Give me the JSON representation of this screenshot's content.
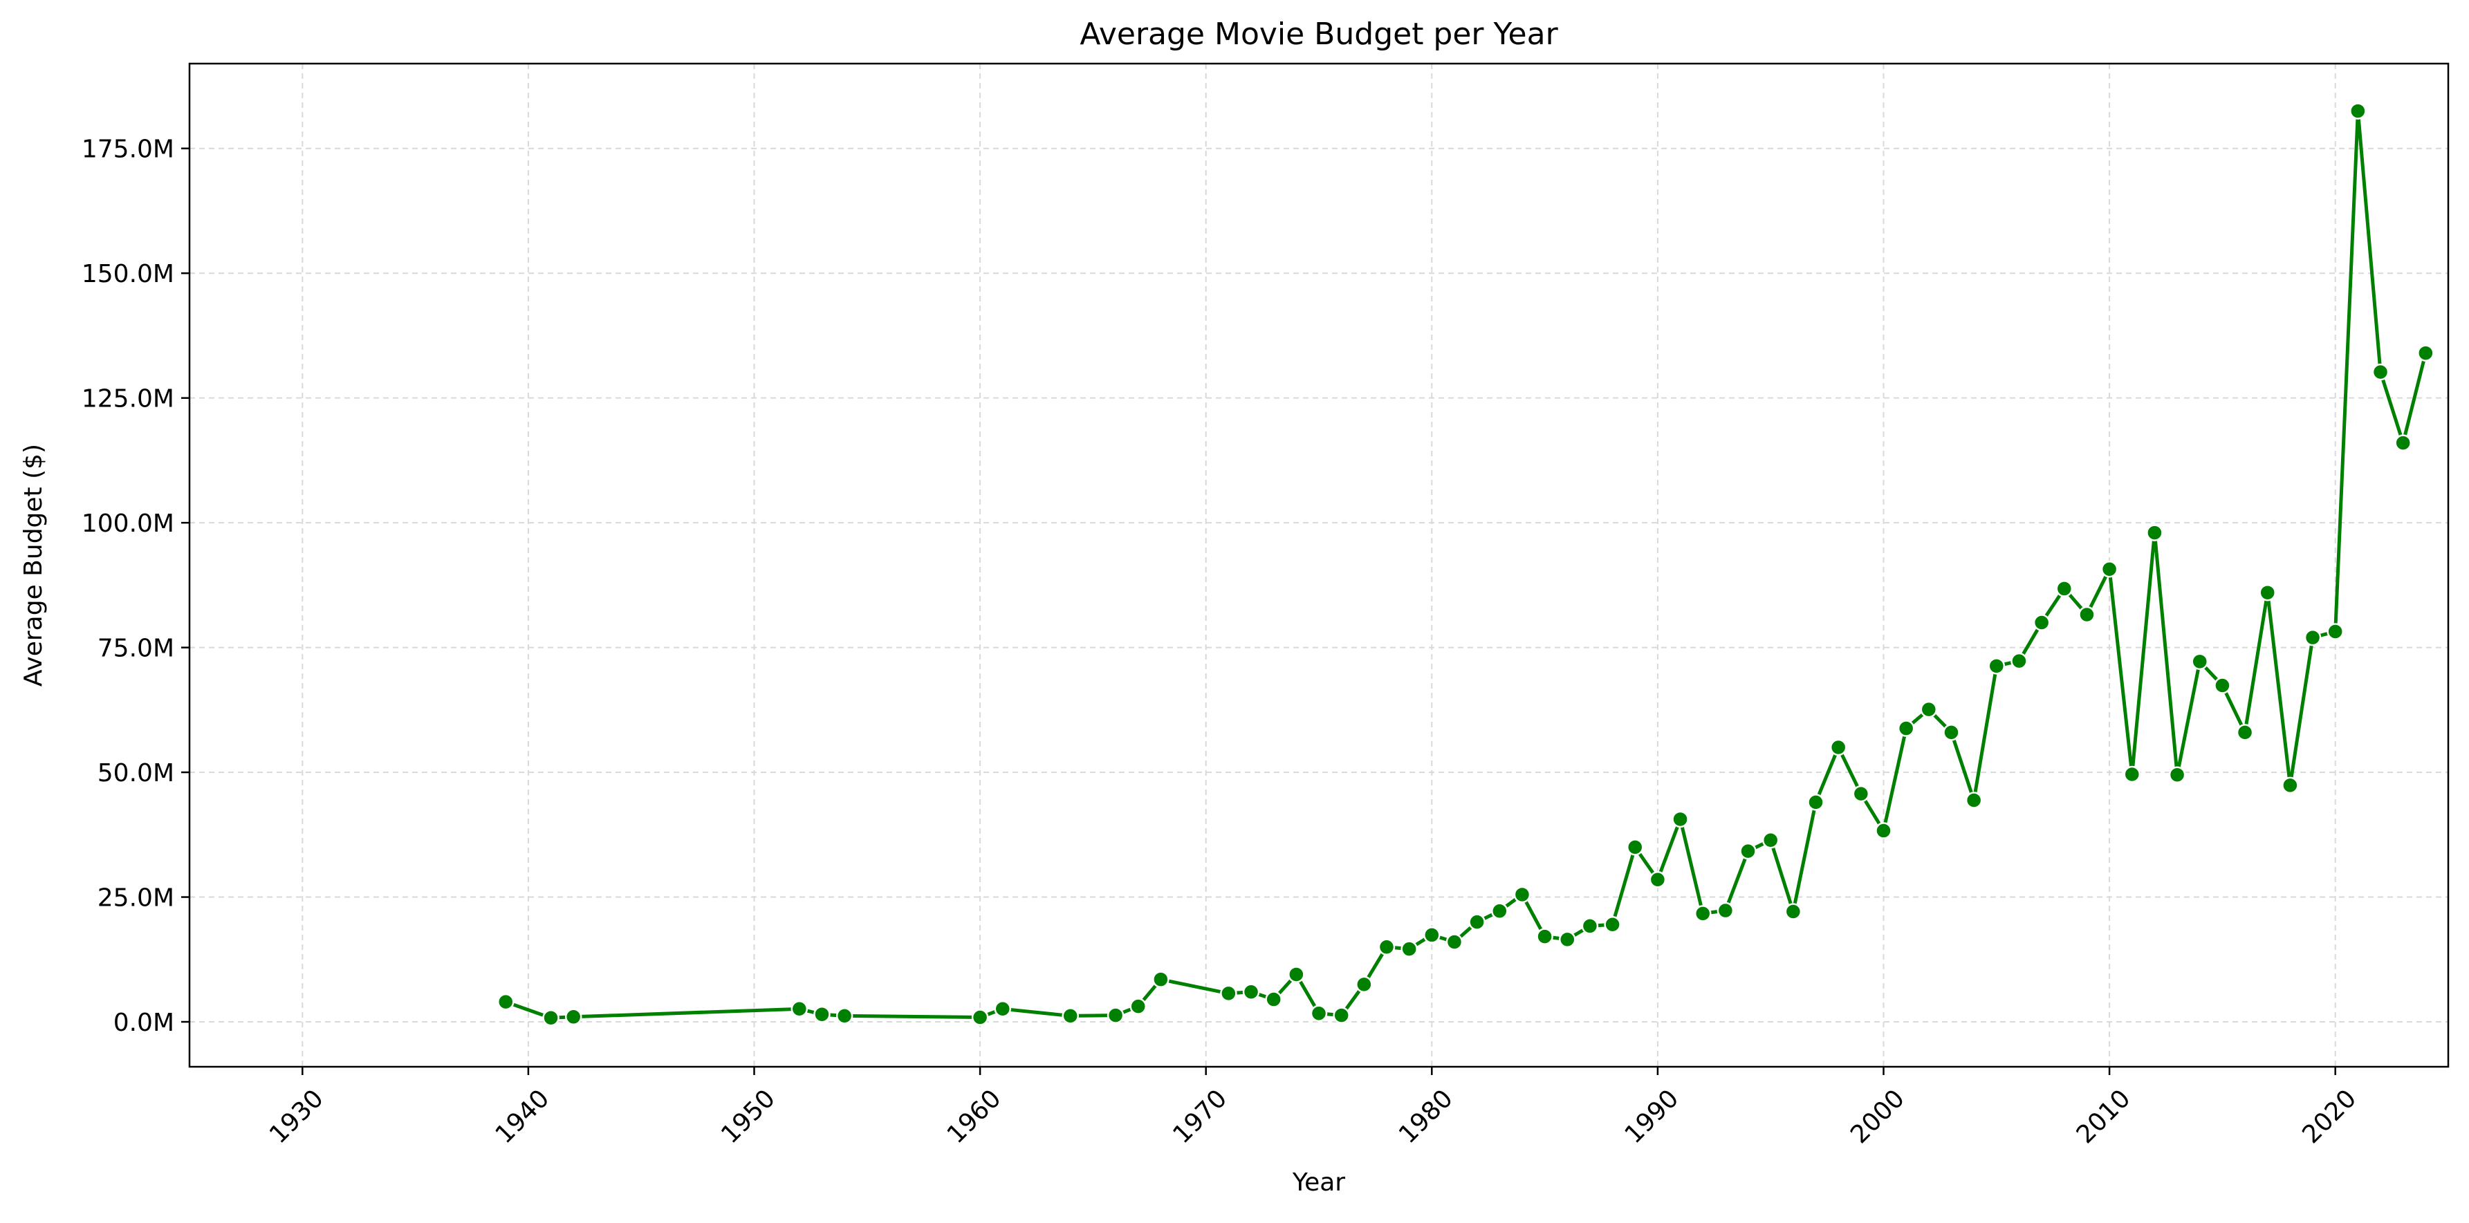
{
  "chart_data": {
    "type": "line",
    "title": "Average Movie Budget per Year",
    "xlabel": "Year",
    "ylabel": "Average Budget ($)",
    "xlim": [
      1925,
      2025
    ],
    "ylim": [
      -9000000,
      192000000
    ],
    "x_ticks": [
      1930,
      1940,
      1950,
      1960,
      1970,
      1980,
      1990,
      2000,
      2010,
      2020
    ],
    "x_tick_labels": [
      "1930",
      "1940",
      "1950",
      "1960",
      "1970",
      "1980",
      "1990",
      "2000",
      "2010",
      "2020"
    ],
    "y_ticks": [
      0,
      25000000,
      50000000,
      75000000,
      100000000,
      125000000,
      150000000,
      175000000
    ],
    "y_tick_labels": [
      "0.0M",
      "25.0M",
      "50.0M",
      "75.0M",
      "100.0M",
      "125.0M",
      "150.0M",
      "175.0M"
    ],
    "grid": true,
    "color": "#008000",
    "marker": "circle",
    "series": [
      {
        "x": [
          1939,
          1941,
          1942,
          1952,
          1953,
          1954,
          1960,
          1961,
          1964,
          1966,
          1967,
          1968,
          1971,
          1972,
          1973,
          1974,
          1975,
          1976,
          1977,
          1978,
          1979,
          1980,
          1981,
          1982,
          1983,
          1984,
          1985,
          1986,
          1987,
          1988,
          1989,
          1990,
          1991,
          1992,
          1993,
          1994,
          1995,
          1996,
          1997,
          1998,
          1999,
          2000,
          2001,
          2002,
          2003,
          2004,
          2005,
          2006,
          2007,
          2008,
          2009,
          2010,
          2011,
          2012,
          2013,
          2014,
          2015,
          2016,
          2017,
          2018,
          2019,
          2020,
          2021,
          2022,
          2023,
          2024
        ],
        "y": [
          4000000,
          800000,
          1000000,
          2600000,
          1500000,
          1200000,
          900000,
          2600000,
          1200000,
          1300000,
          3100000,
          8500000,
          5700000,
          6000000,
          4500000,
          9500000,
          1700000,
          1300000,
          7500000,
          15000000,
          14600000,
          17400000,
          16000000,
          20000000,
          22200000,
          25500000,
          17100000,
          16500000,
          19200000,
          19500000,
          35000000,
          28500000,
          40600000,
          21700000,
          22300000,
          34200000,
          36400000,
          22100000,
          44000000,
          55000000,
          45700000,
          38300000,
          58800000,
          62600000,
          58000000,
          44400000,
          71300000,
          72300000,
          80000000,
          86800000,
          81600000,
          90700000,
          49600000,
          98000000,
          49500000,
          72200000,
          67400000,
          58000000,
          86000000,
          47400000,
          77000000,
          78200000,
          182500000,
          130200000,
          116000000,
          134000000
        ]
      }
    ]
  }
}
